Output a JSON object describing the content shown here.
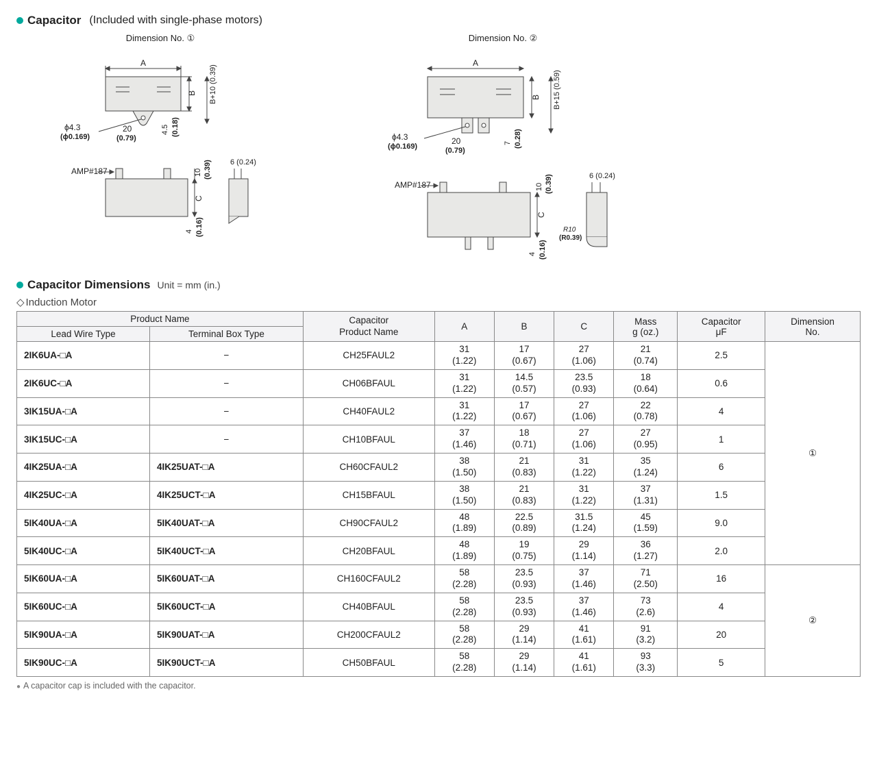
{
  "headings": {
    "capacitor": "Capacitor",
    "capacitor_sub": "(Included with single-phase motors)",
    "dim_no_1": "Dimension No. ①",
    "dim_no_2": "Dimension No. ②",
    "capacitor_dimensions": "Capacitor Dimensions",
    "unit": "Unit = mm (in.)",
    "induction_motor": "Induction Motor",
    "footnote": "A capacitor cap is included with the capacitor."
  },
  "diagram_labels": {
    "A": "A",
    "B": "B",
    "C": "C",
    "amp": "AMP#187",
    "phi": "ϕ4.3",
    "phi_in": "(ϕ0.169)",
    "d20": "20",
    "d20_in": "(0.79)",
    "d45": "4.5",
    "d45_in": "(0.18)",
    "d7": "7",
    "d7_in": "(0.28)",
    "b10": "B+10 (0.39)",
    "b15": "B+15 (0.59)",
    "d10": "10",
    "d10_in": "(0.39)",
    "d6": "6 (0.24)",
    "d4": "4",
    "d4_in": "(0.16)",
    "r10": "R10",
    "r10_in": "(R0.39)"
  },
  "table": {
    "columns": {
      "product_name": "Product Name",
      "lead_wire": "Lead Wire Type",
      "terminal_box": "Terminal Box Type",
      "cap_product": "Capacitor\nProduct Name",
      "A": "A",
      "B": "B",
      "C": "C",
      "mass": "Mass\ng (oz.)",
      "uf": "Capacitor\nμF",
      "dim_no": "Dimension\nNo."
    },
    "groups": [
      {
        "dim_no": "①",
        "rows": [
          {
            "lead": "2IK6UA-□A",
            "term": "−",
            "cap": "CH25FAUL2",
            "A": "31",
            "Ai": "(1.22)",
            "B": "17",
            "Bi": "(0.67)",
            "C": "27",
            "Ci": "(1.06)",
            "M": "21",
            "Mi": "(0.74)",
            "uf": "2.5"
          },
          {
            "lead": "2IK6UC-□A",
            "term": "−",
            "cap": "CH06BFAUL",
            "A": "31",
            "Ai": "(1.22)",
            "B": "14.5",
            "Bi": "(0.57)",
            "C": "23.5",
            "Ci": "(0.93)",
            "M": "18",
            "Mi": "(0.64)",
            "uf": "0.6"
          },
          {
            "lead": "3IK15UA-□A",
            "term": "−",
            "cap": "CH40FAUL2",
            "A": "31",
            "Ai": "(1.22)",
            "B": "17",
            "Bi": "(0.67)",
            "C": "27",
            "Ci": "(1.06)",
            "M": "22",
            "Mi": "(0.78)",
            "uf": "4"
          },
          {
            "lead": "3IK15UC-□A",
            "term": "−",
            "cap": "CH10BFAUL",
            "A": "37",
            "Ai": "(1.46)",
            "B": "18",
            "Bi": "(0.71)",
            "C": "27",
            "Ci": "(1.06)",
            "M": "27",
            "Mi": "(0.95)",
            "uf": "1"
          },
          {
            "lead": "4IK25UA-□A",
            "term": "4IK25UAT-□A",
            "cap": "CH60CFAUL2",
            "A": "38",
            "Ai": "(1.50)",
            "B": "21",
            "Bi": "(0.83)",
            "C": "31",
            "Ci": "(1.22)",
            "M": "35",
            "Mi": "(1.24)",
            "uf": "6"
          },
          {
            "lead": "4IK25UC-□A",
            "term": "4IK25UCT-□A",
            "cap": "CH15BFAUL",
            "A": "38",
            "Ai": "(1.50)",
            "B": "21",
            "Bi": "(0.83)",
            "C": "31",
            "Ci": "(1.22)",
            "M": "37",
            "Mi": "(1.31)",
            "uf": "1.5"
          },
          {
            "lead": "5IK40UA-□A",
            "term": "5IK40UAT-□A",
            "cap": "CH90CFAUL2",
            "A": "48",
            "Ai": "(1.89)",
            "B": "22.5",
            "Bi": "(0.89)",
            "C": "31.5",
            "Ci": "(1.24)",
            "M": "45",
            "Mi": "(1.59)",
            "uf": "9.0"
          },
          {
            "lead": "5IK40UC-□A",
            "term": "5IK40UCT-□A",
            "cap": "CH20BFAUL",
            "A": "48",
            "Ai": "(1.89)",
            "B": "19",
            "Bi": "(0.75)",
            "C": "29",
            "Ci": "(1.14)",
            "M": "36",
            "Mi": "(1.27)",
            "uf": "2.0"
          }
        ]
      },
      {
        "dim_no": "②",
        "rows": [
          {
            "lead": "5IK60UA-□A",
            "term": "5IK60UAT-□A",
            "cap": "CH160CFAUL2",
            "A": "58",
            "Ai": "(2.28)",
            "B": "23.5",
            "Bi": "(0.93)",
            "C": "37",
            "Ci": "(1.46)",
            "M": "71",
            "Mi": "(2.50)",
            "uf": "16"
          },
          {
            "lead": "5IK60UC-□A",
            "term": "5IK60UCT-□A",
            "cap": "CH40BFAUL",
            "A": "58",
            "Ai": "(2.28)",
            "B": "23.5",
            "Bi": "(0.93)",
            "C": "37",
            "Ci": "(1.46)",
            "M": "73",
            "Mi": "(2.6)",
            "uf": "4"
          },
          {
            "lead": "5IK90UA-□A",
            "term": "5IK90UAT-□A",
            "cap": "CH200CFAUL2",
            "A": "58",
            "Ai": "(2.28)",
            "B": "29",
            "Bi": "(1.14)",
            "C": "41",
            "Ci": "(1.61)",
            "M": "91",
            "Mi": "(3.2)",
            "uf": "20"
          },
          {
            "lead": "5IK90UC-□A",
            "term": "5IK90UCT-□A",
            "cap": "CH50BFAUL",
            "A": "58",
            "Ai": "(2.28)",
            "B": "29",
            "Bi": "(1.14)",
            "C": "41",
            "Ci": "(1.61)",
            "M": "93",
            "Mi": "(3.3)",
            "uf": "5"
          }
        ]
      }
    ]
  },
  "style": {
    "accent": "#00a99d",
    "grid": "#888888",
    "header_bg": "#f3f3f5",
    "body_fill": "#e8e8e6",
    "stroke": "#444444",
    "font_size_table": 13.5,
    "font_size_heading": 17
  }
}
